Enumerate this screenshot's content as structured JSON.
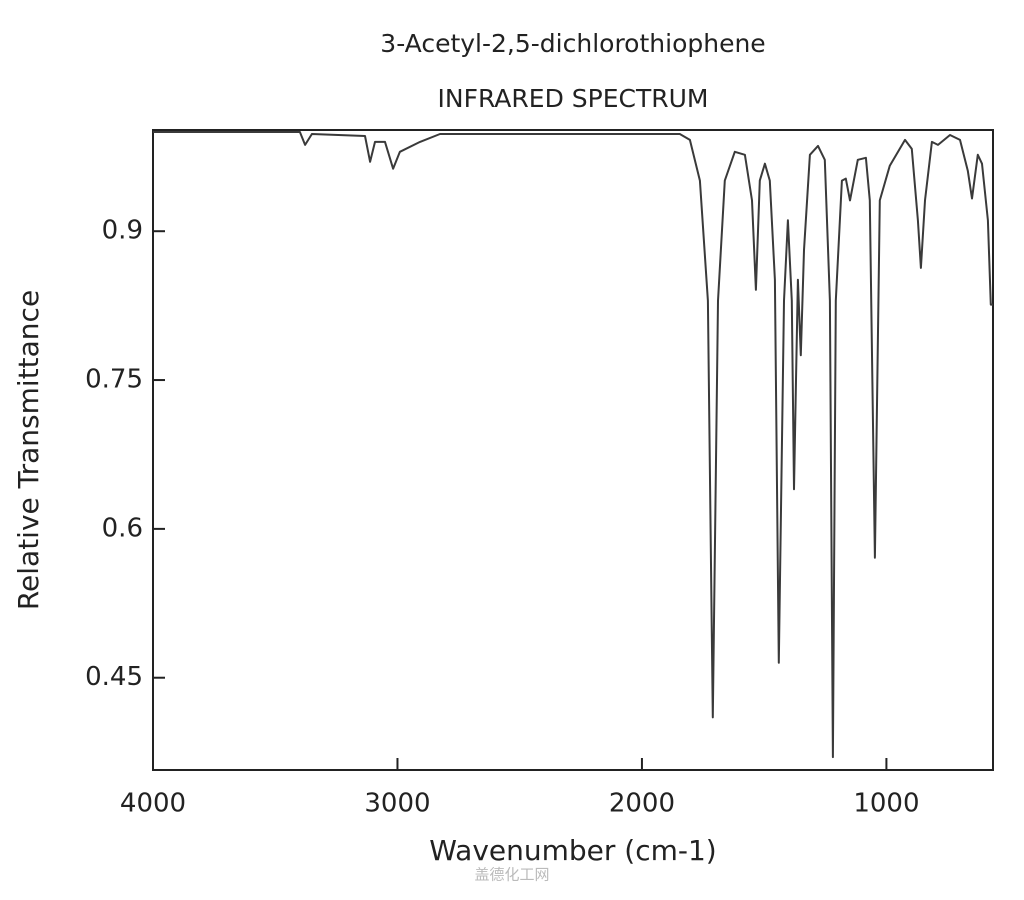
{
  "chart_data": {
    "type": "line",
    "title": "3-Acetyl-2,5-dichlorothiophene",
    "subtitle": "INFRARED SPECTRUM",
    "x_label": "Wavenumber (cm-1)",
    "y_label": "Relative Transmittance",
    "watermark": "盖德化工网",
    "color": "#3a3a3a",
    "xlim": [
      4000,
      564
    ],
    "ylim": [
      0.357,
      1.002
    ],
    "xticks": [
      4000,
      3000,
      2000,
      1000
    ],
    "yticks": [
      0.9,
      0.75,
      0.6,
      0.45
    ],
    "x": [
      4000,
      3399,
      3378,
      3350,
      3133,
      3112,
      3092,
      3051,
      3018,
      2990,
      2908,
      2826,
      1845,
      1804,
      1763,
      1730,
      1710,
      1689,
      1661,
      1620,
      1579,
      1550,
      1534,
      1518,
      1497,
      1477,
      1456,
      1440,
      1419,
      1403,
      1387,
      1378,
      1370,
      1362,
      1350,
      1337,
      1313,
      1280,
      1252,
      1231,
      1219,
      1207,
      1182,
      1166,
      1149,
      1117,
      1084,
      1068,
      1047,
      1027,
      986,
      924,
      896,
      871,
      859,
      842,
      814,
      789,
      740,
      699,
      667,
      650,
      626,
      609,
      585,
      573,
      564
    ],
    "values": [
      1.0,
      1.0,
      0.987,
      0.998,
      0.996,
      0.97,
      0.99,
      0.99,
      0.963,
      0.98,
      0.99,
      0.998,
      0.998,
      0.992,
      0.951,
      0.83,
      0.41,
      0.83,
      0.951,
      0.98,
      0.977,
      0.931,
      0.841,
      0.951,
      0.968,
      0.951,
      0.851,
      0.465,
      0.83,
      0.911,
      0.83,
      0.64,
      0.75,
      0.851,
      0.775,
      0.881,
      0.977,
      0.986,
      0.972,
      0.83,
      0.37,
      0.83,
      0.951,
      0.953,
      0.931,
      0.972,
      0.974,
      0.931,
      0.571,
      0.931,
      0.966,
      0.992,
      0.983,
      0.911,
      0.863,
      0.931,
      0.99,
      0.987,
      0.997,
      0.992,
      0.961,
      0.933,
      0.977,
      0.968,
      0.911,
      0.826,
      0.826
    ]
  }
}
